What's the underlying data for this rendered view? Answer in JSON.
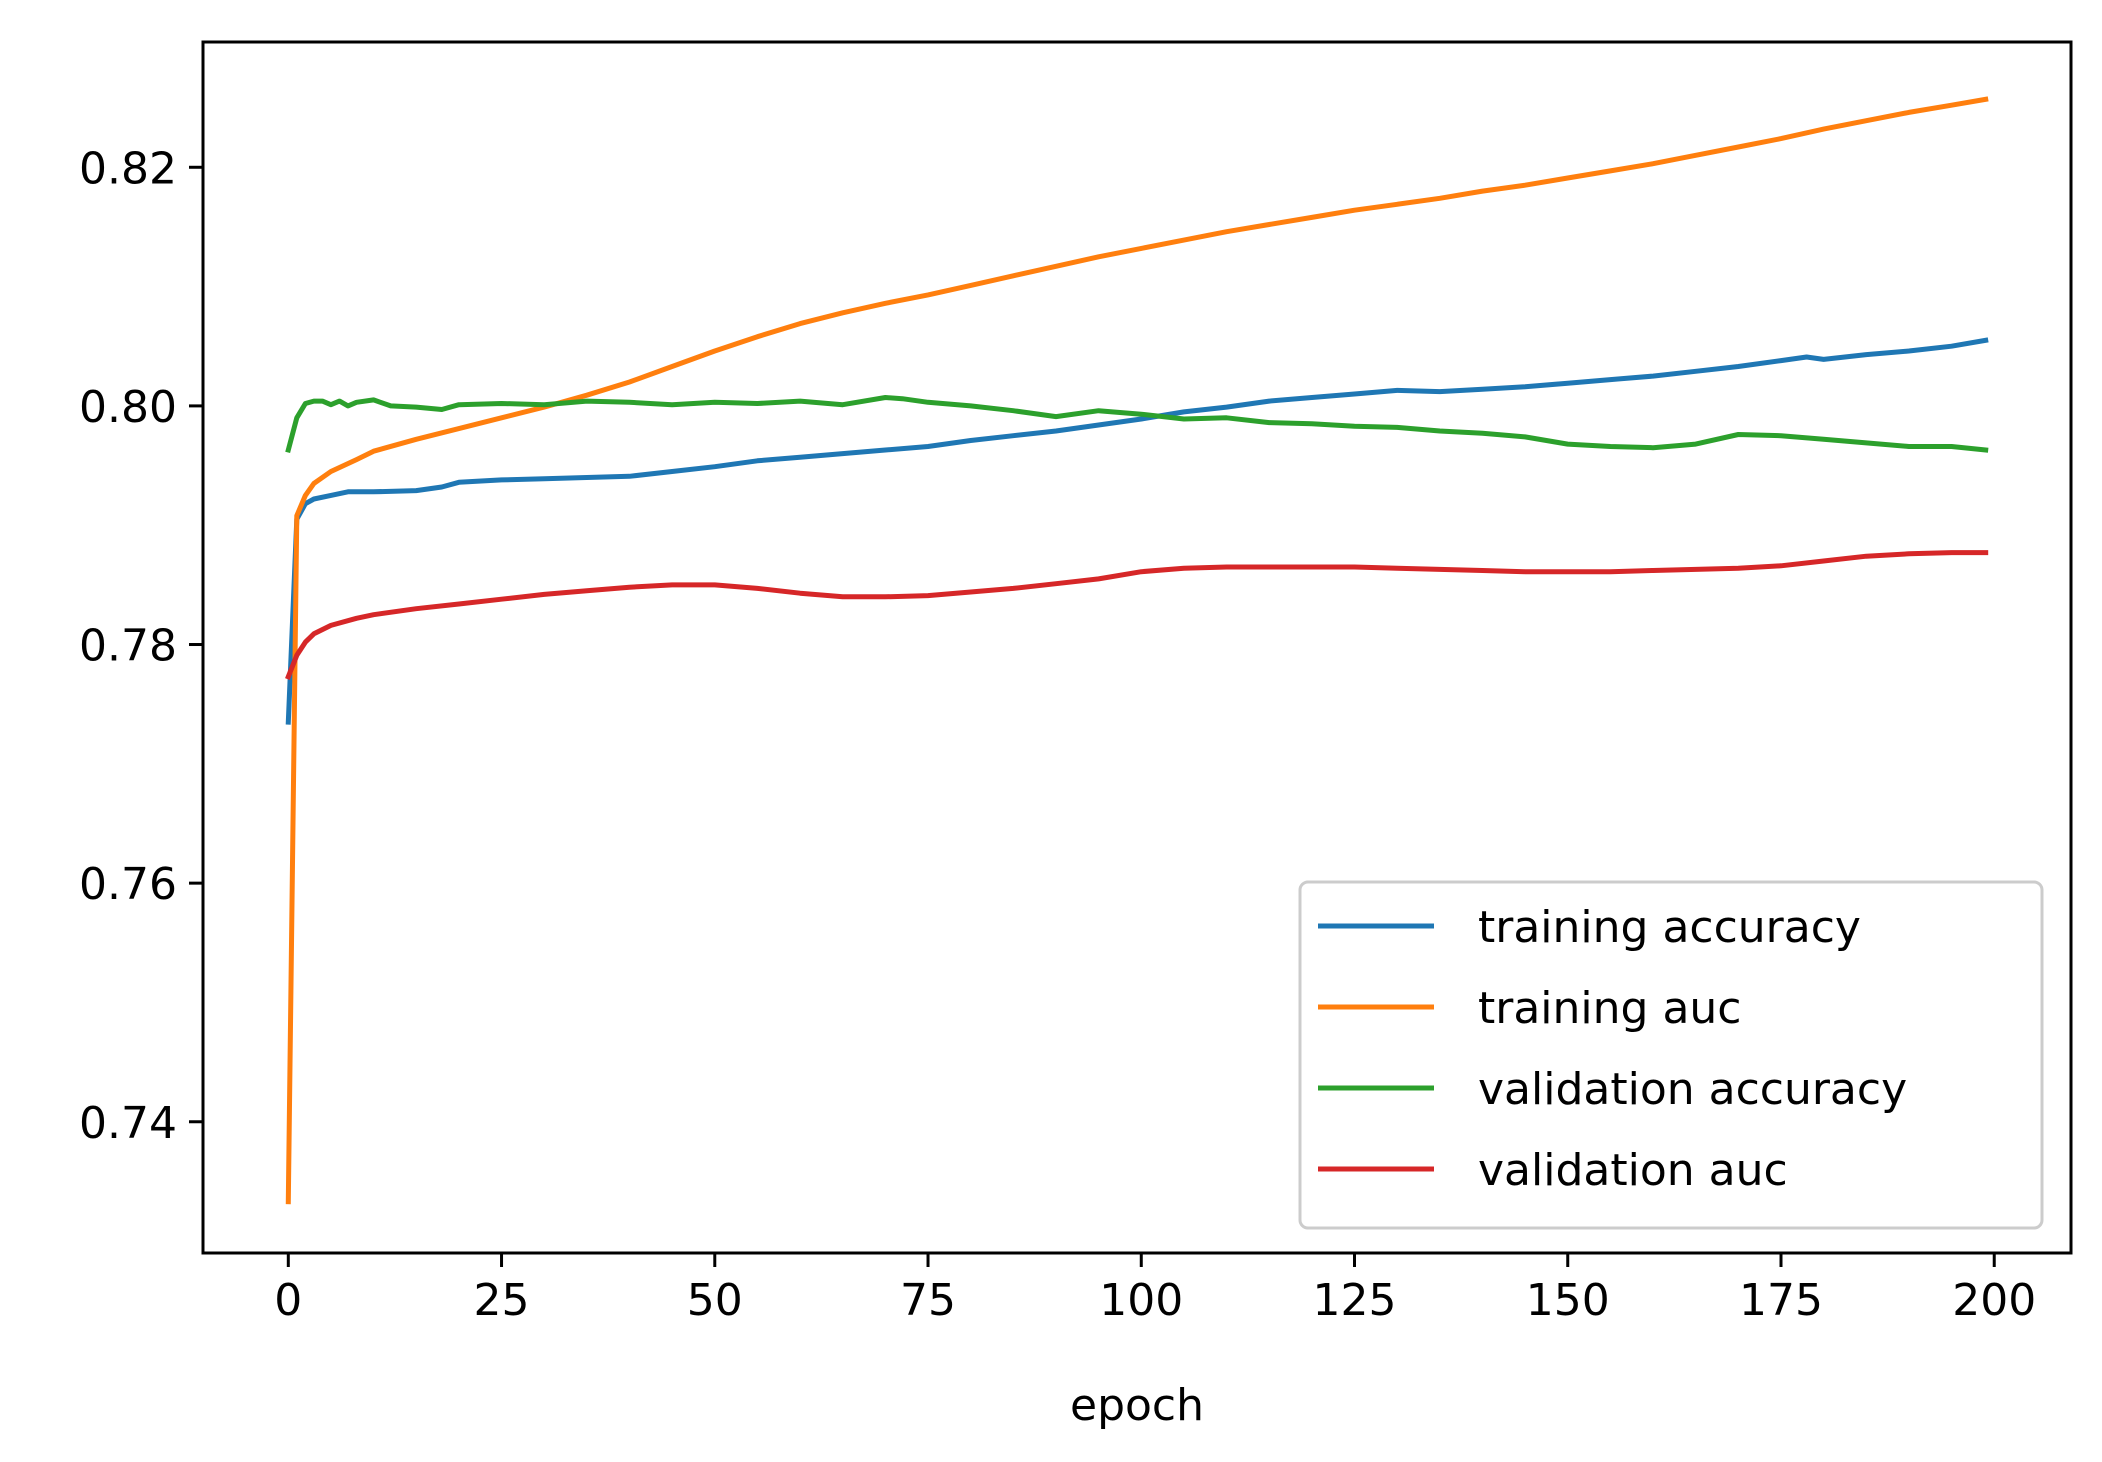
{
  "chart_data": {
    "type": "line",
    "title": "",
    "xlabel": "epoch",
    "ylabel": "",
    "xlim": [
      -10,
      209
    ],
    "ylim": [
      0.729,
      0.8305
    ],
    "xticks": [
      0,
      25,
      50,
      75,
      100,
      125,
      150,
      175,
      200
    ],
    "xtick_labels": [
      "0",
      "25",
      "50",
      "75",
      "100",
      "125",
      "150",
      "175",
      "200"
    ],
    "yticks": [
      0.74,
      0.76,
      0.78,
      0.8,
      0.82
    ],
    "ytick_labels": [
      "0.74",
      "0.76",
      "0.78",
      "0.80",
      "0.82"
    ],
    "grid": false,
    "legend_position": "lower-right",
    "series": [
      {
        "name": "training accuracy",
        "color": "#1f77b4",
        "x": [
          0,
          1,
          2,
          3,
          5,
          7,
          10,
          15,
          18,
          20,
          25,
          30,
          35,
          40,
          45,
          50,
          55,
          60,
          65,
          70,
          75,
          80,
          85,
          90,
          95,
          100,
          105,
          110,
          115,
          120,
          125,
          130,
          135,
          140,
          145,
          150,
          155,
          160,
          165,
          170,
          175,
          178,
          180,
          185,
          190,
          195,
          199
        ],
        "values": [
          0.7735,
          0.7905,
          0.7918,
          0.7922,
          0.7925,
          0.7928,
          0.7928,
          0.7929,
          0.7932,
          0.7936,
          0.7938,
          0.7939,
          0.794,
          0.7941,
          0.7945,
          0.7949,
          0.7954,
          0.7957,
          0.796,
          0.7963,
          0.7966,
          0.7971,
          0.7975,
          0.7979,
          0.7984,
          0.7989,
          0.7995,
          0.7999,
          0.8004,
          0.8007,
          0.801,
          0.8013,
          0.8012,
          0.8014,
          0.8016,
          0.8019,
          0.8022,
          0.8025,
          0.8029,
          0.8033,
          0.8038,
          0.8041,
          0.8039,
          0.8043,
          0.8046,
          0.805,
          0.8055
        ]
      },
      {
        "name": "training auc",
        "color": "#ff7f0e",
        "x": [
          0,
          1,
          2,
          3,
          5,
          8,
          10,
          15,
          20,
          25,
          30,
          35,
          40,
          45,
          50,
          55,
          60,
          65,
          70,
          75,
          80,
          85,
          90,
          95,
          100,
          105,
          110,
          115,
          120,
          125,
          130,
          135,
          140,
          145,
          150,
          155,
          160,
          165,
          170,
          175,
          180,
          185,
          190,
          195,
          199
        ],
        "values": [
          0.7333,
          0.7908,
          0.7925,
          0.7935,
          0.7945,
          0.7955,
          0.7962,
          0.7972,
          0.7981,
          0.799,
          0.7999,
          0.8009,
          0.802,
          0.8033,
          0.8046,
          0.8058,
          0.8069,
          0.8078,
          0.8086,
          0.8093,
          0.8101,
          0.8109,
          0.8117,
          0.8125,
          0.8132,
          0.8139,
          0.8146,
          0.8152,
          0.8158,
          0.8164,
          0.8169,
          0.8174,
          0.818,
          0.8185,
          0.8191,
          0.8197,
          0.8203,
          0.821,
          0.8217,
          0.8224,
          0.8232,
          0.8239,
          0.8246,
          0.8252,
          0.8257
        ]
      },
      {
        "name": "validation accuracy",
        "color": "#2ca02c",
        "x": [
          0,
          1,
          2,
          3,
          4,
          5,
          6,
          7,
          8,
          10,
          12,
          15,
          18,
          20,
          25,
          30,
          35,
          40,
          45,
          50,
          55,
          60,
          65,
          70,
          72,
          75,
          80,
          85,
          90,
          95,
          100,
          105,
          110,
          115,
          120,
          125,
          130,
          135,
          140,
          145,
          150,
          155,
          160,
          165,
          170,
          175,
          180,
          185,
          190,
          195,
          199
        ],
        "values": [
          0.7963,
          0.799,
          0.8002,
          0.8004,
          0.8004,
          0.8001,
          0.8004,
          0.8,
          0.8003,
          0.8005,
          0.8,
          0.7999,
          0.7997,
          0.8001,
          0.8002,
          0.8001,
          0.8004,
          0.8003,
          0.8001,
          0.8003,
          0.8002,
          0.8004,
          0.8001,
          0.8007,
          0.8006,
          0.8003,
          0.8,
          0.7996,
          0.7991,
          0.7996,
          0.7993,
          0.7989,
          0.799,
          0.7986,
          0.7985,
          0.7983,
          0.7982,
          0.7979,
          0.7977,
          0.7974,
          0.7968,
          0.7966,
          0.7965,
          0.7968,
          0.7976,
          0.7975,
          0.7972,
          0.7969,
          0.7966,
          0.7966,
          0.7963
        ]
      },
      {
        "name": "validation auc",
        "color": "#d62728",
        "x": [
          0,
          1,
          2,
          3,
          5,
          8,
          10,
          15,
          20,
          25,
          30,
          35,
          40,
          45,
          50,
          55,
          60,
          65,
          70,
          75,
          80,
          85,
          90,
          95,
          100,
          105,
          110,
          115,
          120,
          125,
          130,
          135,
          140,
          145,
          150,
          155,
          160,
          165,
          170,
          175,
          180,
          185,
          190,
          195,
          199
        ],
        "values": [
          0.7773,
          0.7791,
          0.7802,
          0.7809,
          0.7816,
          0.7822,
          0.7825,
          0.783,
          0.7834,
          0.7838,
          0.7842,
          0.7845,
          0.7848,
          0.785,
          0.785,
          0.7847,
          0.7843,
          0.784,
          0.784,
          0.7841,
          0.7844,
          0.7847,
          0.7851,
          0.7855,
          0.7861,
          0.7864,
          0.7865,
          0.7865,
          0.7865,
          0.7865,
          0.7864,
          0.7863,
          0.7862,
          0.7861,
          0.7861,
          0.7861,
          0.7862,
          0.7863,
          0.7864,
          0.7866,
          0.787,
          0.7874,
          0.7876,
          0.7877,
          0.7877
        ]
      }
    ]
  }
}
